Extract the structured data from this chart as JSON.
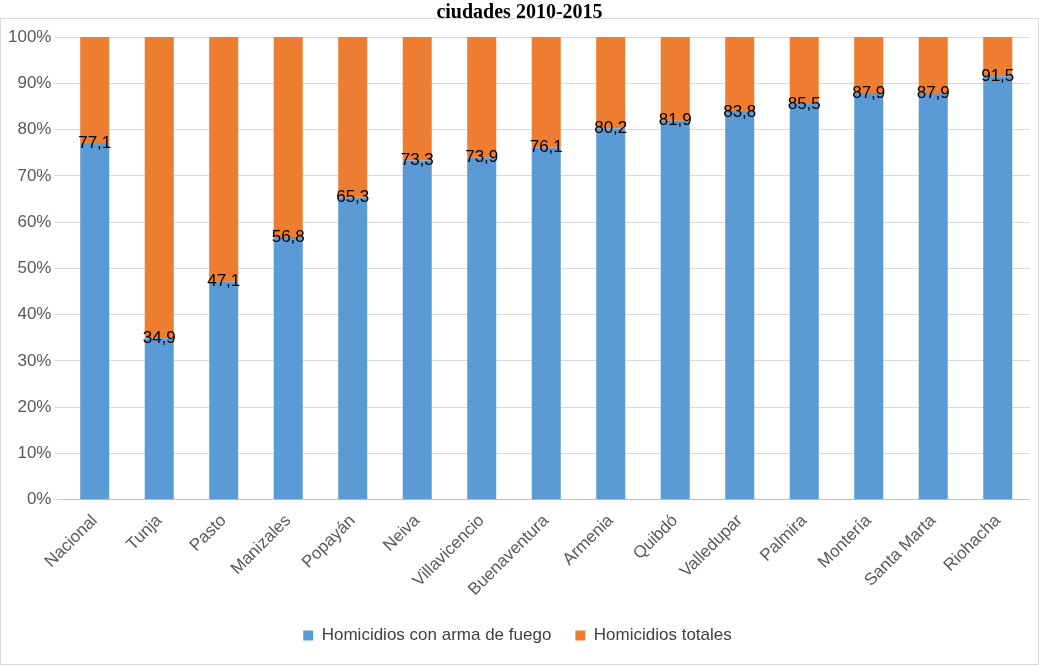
{
  "chart_data": {
    "type": "bar",
    "title": "ciudades 2010-2015",
    "stacked": true,
    "categories": [
      "Nacional",
      "Tunja",
      "Pasto",
      "Manizales",
      "Popayán",
      "Neiva",
      "Villavicencio",
      "Buenaventura",
      "Armenia",
      "Quibdó",
      "Valledupar",
      "Palmira",
      "Montería",
      "Santa Marta",
      "Riohacha"
    ],
    "series": [
      {
        "name": "Homicidios con arma de fuego",
        "color": "#5b9bd5",
        "values": [
          77.1,
          34.9,
          47.1,
          56.8,
          65.3,
          73.3,
          73.9,
          76.1,
          80.2,
          81.9,
          83.8,
          85.5,
          87.9,
          87.9,
          91.5
        ],
        "value_labels": [
          "77,1",
          "34,9",
          "47,1",
          "56,8",
          "65,3",
          "73,3",
          "73,9",
          "76,1",
          "80,2",
          "81,9",
          "83,8",
          "85,5",
          "87,9",
          "87,9",
          "91,5"
        ]
      },
      {
        "name": "Homicidios totales",
        "color": "#ed7d31",
        "values": [
          22.9,
          65.1,
          52.9,
          43.2,
          34.7,
          26.7,
          26.1,
          23.9,
          19.8,
          18.1,
          16.2,
          14.5,
          12.1,
          12.1,
          8.5
        ]
      }
    ],
    "ylim": [
      0,
      100
    ],
    "yticks": [
      {
        "value": 0,
        "label": "0%"
      },
      {
        "value": 10,
        "label": "10%"
      },
      {
        "value": 20,
        "label": "20%"
      },
      {
        "value": 30,
        "label": "30%"
      },
      {
        "value": 40,
        "label": "40%"
      },
      {
        "value": 50,
        "label": "50%"
      },
      {
        "value": 60,
        "label": "60%"
      },
      {
        "value": 70,
        "label": "70%"
      },
      {
        "value": 80,
        "label": "80%"
      },
      {
        "value": 90,
        "label": "90%"
      },
      {
        "value": 100,
        "label": "100%"
      }
    ],
    "grid": "y",
    "legend": "bottom"
  }
}
